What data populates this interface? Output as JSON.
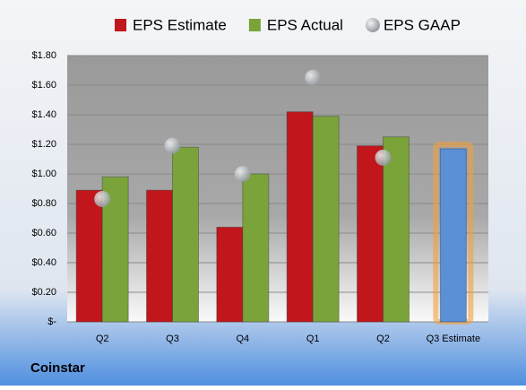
{
  "chart_data": {
    "type": "bar",
    "footer": "Coinstar",
    "categories": [
      "Q2",
      "Q3",
      "Q4",
      "Q1",
      "Q2",
      "Q3 Estimate"
    ],
    "series": [
      {
        "name": "EPS Estimate",
        "color": "#c0161c",
        "values": [
          0.89,
          0.89,
          0.64,
          1.42,
          1.19,
          1.17
        ],
        "point_colors": [
          "#c0161c",
          "#c0161c",
          "#c0161c",
          "#c0161c",
          "#c0161c",
          "#5b8fd6"
        ]
      },
      {
        "name": "EPS Actual",
        "color": "#7aa33a",
        "values": [
          0.98,
          1.18,
          1.0,
          1.39,
          1.25,
          null
        ]
      },
      {
        "name": "EPS GAAP",
        "color": "#a9aeb4",
        "type": "scatter",
        "values": [
          0.83,
          1.19,
          1.0,
          1.65,
          1.11,
          null
        ]
      }
    ],
    "ylim": [
      0,
      1.8
    ],
    "yticks": [
      {
        "value": 0,
        "label": "$-"
      },
      {
        "value": 0.2,
        "label": "$0.20"
      },
      {
        "value": 0.4,
        "label": "$0.40"
      },
      {
        "value": 0.6,
        "label": "$0.60"
      },
      {
        "value": 0.8,
        "label": "$0.80"
      },
      {
        "value": 1.0,
        "label": "$1.00"
      },
      {
        "value": 1.2,
        "label": "$1.20"
      },
      {
        "value": 1.4,
        "label": "$1.40"
      },
      {
        "value": 1.6,
        "label": "$1.60"
      },
      {
        "value": 1.8,
        "label": "$1.80"
      }
    ],
    "grid": true,
    "legend": "top"
  }
}
